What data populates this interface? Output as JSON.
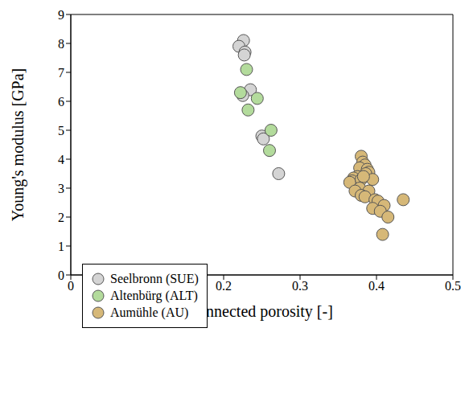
{
  "chart_data": {
    "type": "scatter",
    "x_label": "connected porosity [-]",
    "y_label": "Young's modulus [GPa]",
    "xlim": [
      0,
      0.5
    ],
    "ylim": [
      0,
      9
    ],
    "xticks": [
      0,
      0.1,
      0.2,
      0.3,
      0.4,
      0.5
    ],
    "yticks": [
      0,
      1,
      2,
      3,
      4,
      5,
      6,
      7,
      8,
      9
    ],
    "grid": false,
    "legend": "lower left",
    "series": [
      {
        "name": "Seelbronn (SUE)",
        "color": "#d4d4d4",
        "marker": "circle",
        "x": [
          0.226,
          0.22,
          0.228,
          0.227,
          0.235,
          0.225,
          0.25,
          0.252,
          0.272
        ],
        "values": [
          8.1,
          7.9,
          7.7,
          7.6,
          6.4,
          6.2,
          4.8,
          4.7,
          3.5
        ]
      },
      {
        "name": "Altenbürg (ALT)",
        "color": "#b3db9c",
        "marker": "circle",
        "x": [
          0.23,
          0.222,
          0.244,
          0.232,
          0.262,
          0.26
        ],
        "values": [
          7.1,
          6.3,
          6.1,
          5.7,
          5.0,
          4.3
        ]
      },
      {
        "name": "Aumühle (AU)",
        "color": "#d6b878",
        "marker": "circle",
        "x": [
          0.38,
          0.382,
          0.385,
          0.378,
          0.388,
          0.39,
          0.386,
          0.375,
          0.37,
          0.395,
          0.368,
          0.365,
          0.38,
          0.383,
          0.378,
          0.39,
          0.372,
          0.38,
          0.385,
          0.398,
          0.402,
          0.41,
          0.395,
          0.405,
          0.415,
          0.435,
          0.408
        ],
        "values": [
          4.1,
          3.9,
          3.8,
          3.7,
          3.65,
          3.55,
          3.5,
          3.4,
          3.35,
          3.3,
          3.25,
          3.2,
          3.3,
          3.4,
          3.0,
          2.9,
          2.9,
          2.75,
          2.7,
          2.6,
          2.55,
          2.4,
          2.3,
          2.2,
          2.0,
          2.6,
          1.4
        ]
      }
    ]
  }
}
